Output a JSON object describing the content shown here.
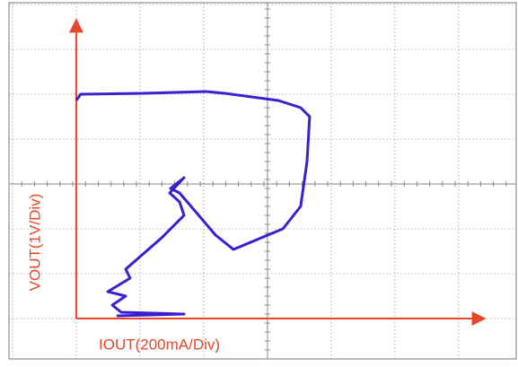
{
  "chart_data": {
    "type": "line",
    "xlabel": "IOUT(200mA/Div)",
    "ylabel": "VOUT(1V/Div)",
    "xlim": [
      -211,
      1380
    ],
    "ylim": [
      -0.9,
      7.04
    ],
    "color": "#3a1fd0",
    "axis_color": "#e8462a",
    "x": [
      0,
      14,
      211,
      408,
      465,
      634,
      704,
      732,
      724,
      704,
      648,
      493,
      437,
      324,
      296,
      338,
      293,
      324,
      338,
      268,
      155,
      169,
      99,
      155,
      113,
      141,
      338,
      127
    ],
    "values": [
      4.86,
      5.0,
      5.02,
      5.06,
      5.02,
      4.86,
      4.7,
      4.5,
      3.5,
      2.5,
      2.0,
      1.54,
      1.86,
      2.8,
      2.9,
      3.14,
      2.8,
      2.6,
      2.3,
      1.8,
      1.1,
      0.9,
      0.6,
      0.5,
      0.3,
      0.14,
      0.1,
      0.06
    ]
  }
}
